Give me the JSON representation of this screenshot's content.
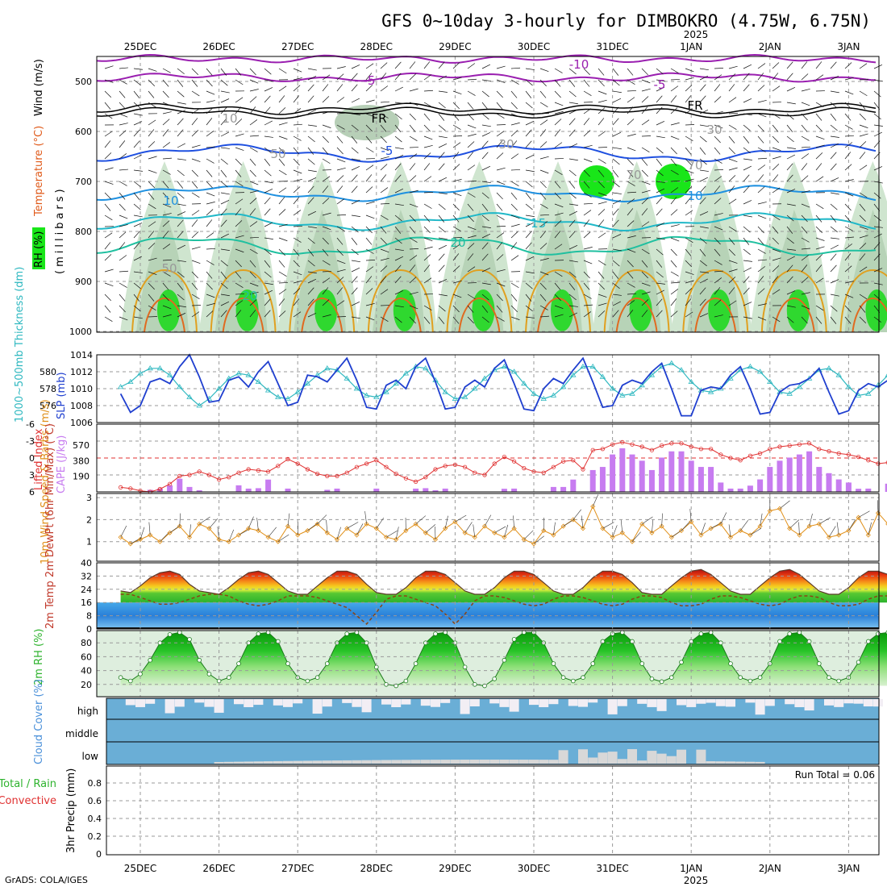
{
  "title": "GFS 0~10day 3-hourly for DIMBOKRO (4.75W, 6.75N)",
  "credit": "GrADS: COLA/IGES",
  "dates": [
    "25DEC",
    "26DEC",
    "27DEC",
    "28DEC",
    "29DEC",
    "30DEC",
    "31DEC",
    "1JAN",
    "2JAN",
    "3JAN"
  ],
  "year_label": "2025",
  "panels": {
    "upper": {
      "ylabel_rh": "RH (%)",
      "ylabel_temp": "Temperature (°C)",
      "ylabel_wind": "Wind (m/s)",
      "ylabel_mb": "(millibars)",
      "levels": [
        "500",
        "600",
        "700",
        "800",
        "900",
        "1000"
      ],
      "contour_labels": [
        "-10",
        "-5",
        "-5",
        "FR",
        "FR",
        "-5",
        "10",
        "10",
        "-15",
        "20",
        "20",
        "10",
        "30",
        "50",
        "30",
        "50",
        "70",
        "70"
      ]
    },
    "thick": {
      "ylabel_left": "1000~500mb Thickness (dm)",
      "ylabel_right": "SLP (mb)",
      "ticks_left": [
        "580",
        "578",
        "576"
      ],
      "ticks_right": [
        "1014",
        "1012",
        "1010",
        "1008",
        "1006"
      ]
    },
    "lifted": {
      "ylabel_left": "Lifted Index",
      "ylabel_right": "CAPE (J/kg)",
      "ticks_left": [
        "-6",
        "-3",
        "0",
        "3",
        "6"
      ],
      "ticks_right": [
        "570",
        "380",
        "190"
      ]
    },
    "wind": {
      "ylabel": "10m Wind Speed & Barbs (m/s)",
      "ticks": [
        "3",
        "2",
        "1"
      ]
    },
    "temp": {
      "ylabel": "2m Temp 2m DewPt (6hr Min/Max) (°C)",
      "ticks": [
        "40",
        "32",
        "24",
        "16",
        "8",
        "0"
      ]
    },
    "rh": {
      "ylabel": "2m RH (%)",
      "ticks": [
        "80",
        "60",
        "40",
        "20"
      ]
    },
    "cloud": {
      "ylabel": "Cloud Cover (%)",
      "rows": [
        "high",
        "middle",
        "low"
      ]
    },
    "precip": {
      "ylabel_left": "Total / Rain",
      "ylabel_left2": "Convective",
      "ylabel": "3hr Precip (mm)",
      "ticks": [
        "0.8",
        "0.6",
        "0.4",
        "0.2",
        "0"
      ],
      "run_total": "Run Total = 0.06"
    }
  },
  "colors": {
    "slp": "#1f3fcf",
    "thickness": "#2fb8c0",
    "lifted": "#e03030",
    "cape": "#c77cf0",
    "wind": "#e0901a",
    "rh": "#2db32d",
    "cloud": "#6aaed6",
    "dewpt": "#8b4513",
    "rh_green": "#19e619",
    "purple": "#9a1fb0",
    "blue": "#1f50e0"
  },
  "chart_data": {
    "type": "line",
    "x_unit": "3-hourly steps from 24DEC 18Z",
    "slp_mb": [
      1009.4,
      1007.2,
      1008.0,
      1010.8,
      1011.2,
      1010.6,
      1012.6,
      1014.0,
      1011.4,
      1008.4,
      1008.6,
      1011.0,
      1011.4,
      1010.2,
      1012.0,
      1013.2,
      1010.6,
      1008.0,
      1008.4,
      1011.6,
      1011.4,
      1010.8,
      1012.2,
      1013.6,
      1011.0,
      1007.8,
      1007.6,
      1010.4,
      1011.0,
      1010.0,
      1012.6,
      1013.6,
      1010.8,
      1007.6,
      1007.8,
      1010.2,
      1011.0,
      1010.2,
      1012.4,
      1013.4,
      1010.6,
      1007.6,
      1007.4,
      1010.0,
      1011.2,
      1010.6,
      1012.2,
      1013.6,
      1010.8,
      1007.8,
      1008.0,
      1010.4,
      1011.0,
      1010.6,
      1012.0,
      1013.0,
      1010.0,
      1006.8,
      1006.8,
      1009.8,
      1010.2,
      1010.0,
      1011.6,
      1012.6,
      1010.0,
      1007.0,
      1007.2,
      1009.6,
      1010.4,
      1010.6,
      1011.2,
      1012.4,
      1009.6,
      1007.0,
      1007.4,
      1009.8,
      1010.6,
      1010.2,
      1011.0,
      1011.8,
      1008.6
    ],
    "thickness_dm": [
      578.2,
      578.8,
      579.8,
      580.4,
      580.4,
      579.6,
      578.2,
      577.0,
      576.0,
      576.8,
      578.0,
      579.2,
      579.8,
      579.6,
      578.8,
      577.8,
      577.0,
      576.8,
      577.6,
      578.6,
      579.6,
      580.4,
      580.2,
      579.2,
      578.0,
      577.2,
      577.0,
      577.6,
      578.6,
      579.8,
      580.6,
      580.4,
      579.0,
      577.6,
      576.8,
      577.0,
      578.0,
      579.2,
      580.2,
      580.6,
      580.0,
      578.6,
      577.4,
      576.8,
      577.2,
      578.2,
      579.6,
      580.6,
      580.6,
      579.4,
      578.0,
      577.2,
      577.4,
      578.4,
      579.6,
      580.6,
      581.0,
      580.2,
      578.8,
      577.8,
      577.6,
      578.0,
      579.2,
      580.2,
      580.6,
      580.0,
      578.8,
      577.6,
      577.4,
      578.2,
      579.2,
      580.2,
      580.4,
      579.6,
      578.2,
      577.2,
      577.4,
      578.4,
      579.6,
      580.2,
      579.8
    ],
    "lifted_index": [
      5.2,
      5.4,
      5.8,
      6.0,
      5.5,
      4.6,
      3.2,
      3.0,
      2.4,
      3.0,
      3.8,
      3.4,
      2.6,
      2.0,
      2.2,
      2.4,
      1.4,
      0.2,
      1.0,
      2.0,
      2.8,
      3.2,
      3.2,
      2.6,
      1.6,
      1.0,
      0.4,
      1.6,
      2.8,
      3.6,
      4.2,
      3.4,
      2.0,
      1.4,
      1.2,
      1.6,
      2.6,
      3.0,
      1.0,
      -0.2,
      0.6,
      1.8,
      2.4,
      2.6,
      1.6,
      0.6,
      0.4,
      2.0,
      -1.4,
      -1.6,
      -2.4,
      -2.8,
      -2.4,
      -2.0,
      -1.4,
      -2.2,
      -2.6,
      -2.6,
      -2.0,
      -1.6,
      -1.6,
      -0.6,
      0.0,
      0.4,
      -0.4,
      -0.8,
      -1.6,
      -2.0,
      -2.2,
      -2.4,
      -2.6,
      -1.6,
      -1.2,
      -0.8,
      -0.6,
      -0.2,
      0.4,
      1.0,
      0.8,
      1.2,
      0.6
    ],
    "cape_jkg": [
      null,
      null,
      null,
      25,
      40,
      80,
      160,
      60,
      20,
      null,
      null,
      null,
      80,
      40,
      45,
      150,
      null,
      null,
      null,
      null,
      null,
      25,
      40,
      null,
      null,
      null,
      null,
      null,
      null,
      null,
      40,
      45,
      20,
      40,
      null,
      null,
      null,
      null,
      null,
      null,
      null,
      null,
      null,
      null,
      60,
      60,
      150,
      null,
      null,
      null,
      null,
      null,
      null,
      null,
      null,
      null,
      null,
      null,
      null,
      null,
      null,
      null,
      null,
      null,
      null,
      null,
      null,
      null,
      null,
      null,
      null,
      null,
      null,
      null,
      null,
      null,
      null,
      null,
      100,
      80,
      150
    ],
    "wind_speed_ms": [
      1.2,
      0.9,
      1.1,
      1.3,
      1.0,
      1.4,
      1.7,
      1.2,
      1.8,
      1.6,
      1.1,
      1.0,
      1.3,
      1.6,
      1.5,
      1.2,
      1.0,
      1.7,
      1.3,
      1.5,
      1.8,
      1.4,
      1.1,
      1.6,
      1.3,
      1.8,
      1.6,
      1.2,
      1.1,
      1.5,
      1.8,
      1.4,
      1.1,
      1.6,
      1.9,
      1.4,
      1.2,
      1.7,
      1.4,
      1.2,
      1.6,
      1.1,
      0.9,
      1.5,
      1.3,
      1.7,
      2.0,
      1.6,
      2.6,
      1.6,
      1.2,
      1.4,
      1.0,
      1.8,
      1.4,
      1.7,
      1.2,
      1.5,
      1.9,
      1.3,
      1.6,
      1.8,
      1.2,
      1.5,
      1.3,
      1.7,
      2.4,
      2.5,
      1.6,
      1.3,
      1.7,
      1.8,
      1.2,
      1.3,
      1.5,
      2.1,
      1.3,
      2.3,
      1.8,
      1.6,
      2.9,
      1.8,
      1.5,
      2.0,
      1.5,
      1.3
    ],
    "temp_c": [
      23,
      22,
      26,
      31,
      34,
      35,
      33,
      27,
      23,
      22,
      21,
      25,
      30,
      34,
      35,
      33,
      28,
      23,
      21,
      21,
      26,
      31,
      35,
      35,
      33,
      27,
      22,
      21,
      21,
      25,
      31,
      35,
      35,
      33,
      28,
      23,
      21,
      21,
      25,
      31,
      35,
      35,
      33,
      28,
      23,
      21,
      21,
      25,
      31,
      35,
      35,
      33,
      28,
      22,
      21,
      21,
      26,
      31,
      35,
      36,
      33,
      28,
      23,
      21,
      21,
      26,
      31,
      35,
      36,
      33,
      28,
      23,
      21,
      21,
      25,
      31,
      35,
      35,
      33,
      27,
      22
    ],
    "dewpt_c": [
      21,
      21,
      19,
      17,
      15,
      15,
      16,
      18,
      20,
      21,
      21,
      20,
      17,
      15,
      14,
      15,
      17,
      20,
      20,
      20,
      19,
      17,
      15,
      13,
      8,
      3,
      10,
      18,
      20,
      20,
      18,
      16,
      14,
      9,
      3,
      9,
      17,
      20,
      20,
      19,
      17,
      15,
      14,
      15,
      18,
      20,
      20,
      19,
      17,
      15,
      14,
      15,
      18,
      20,
      20,
      19,
      16,
      14,
      14,
      15,
      18,
      20,
      20,
      19,
      17,
      15,
      14,
      15,
      18,
      20,
      20,
      19,
      16,
      14,
      14,
      15,
      18,
      20,
      20,
      19,
      18
    ],
    "rh_pct": [
      30,
      25,
      35,
      55,
      80,
      92,
      95,
      85,
      55,
      35,
      25,
      30,
      50,
      80,
      93,
      95,
      82,
      50,
      30,
      25,
      30,
      50,
      80,
      93,
      95,
      80,
      45,
      20,
      18,
      25,
      50,
      80,
      93,
      95,
      80,
      45,
      20,
      18,
      28,
      55,
      85,
      95,
      95,
      80,
      50,
      30,
      25,
      30,
      50,
      82,
      93,
      95,
      82,
      50,
      28,
      24,
      30,
      52,
      82,
      93,
      95,
      80,
      50,
      30,
      25,
      30,
      50,
      82,
      93,
      95,
      82,
      50,
      30,
      25,
      30,
      52,
      82,
      93,
      95,
      90,
      80
    ],
    "run_total_mm": 0.06
  }
}
